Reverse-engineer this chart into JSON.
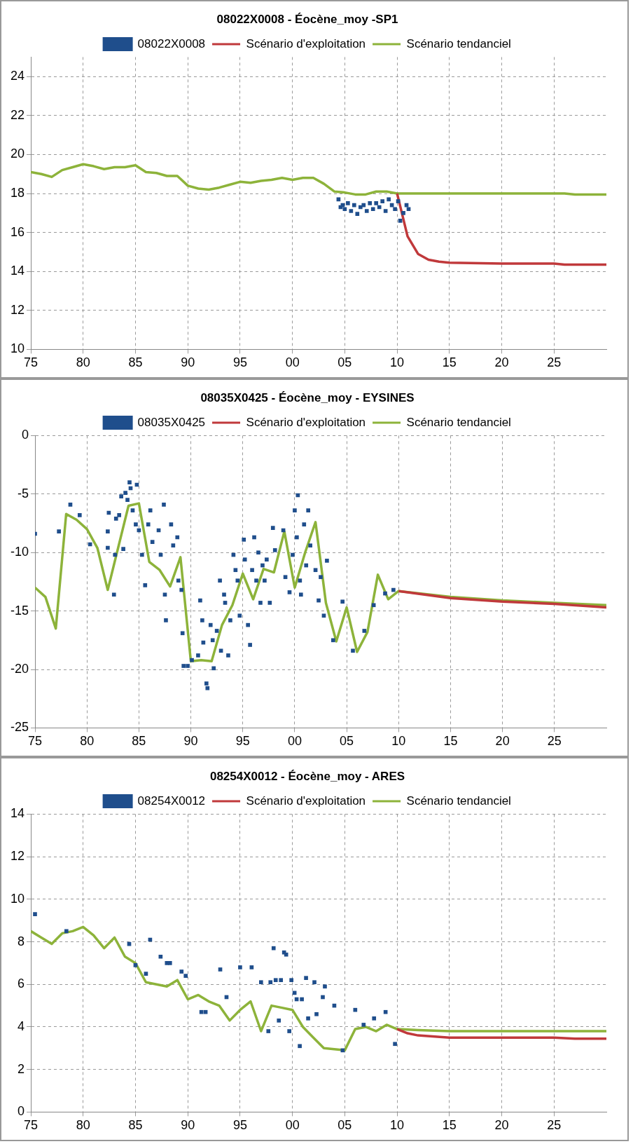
{
  "chart_data": [
    {
      "type": "line",
      "title": "08022X0008 - Éocène_moy -SP1",
      "xlim": [
        1975,
        2030
      ],
      "xticks": [
        {
          "value": 1975,
          "label": "75"
        },
        {
          "value": 1980,
          "label": "80"
        },
        {
          "value": 1985,
          "label": "85"
        },
        {
          "value": 1990,
          "label": "90"
        },
        {
          "value": 1995,
          "label": "95"
        },
        {
          "value": 2000,
          "label": "00"
        },
        {
          "value": 2005,
          "label": "05"
        },
        {
          "value": 2010,
          "label": "10"
        },
        {
          "value": 2015,
          "label": "15"
        },
        {
          "value": 2020,
          "label": "20"
        },
        {
          "value": 2025,
          "label": "25"
        }
      ],
      "ylim": [
        10,
        25
      ],
      "yticks": [
        10,
        12,
        14,
        16,
        18,
        20,
        22,
        24
      ],
      "grid": true,
      "legend": "top",
      "series": [
        {
          "name": "08022X0008",
          "type": "scatter",
          "marker": "square",
          "color": "#1f4e8c",
          "x": [
            2004.4,
            2004.6,
            2004.8,
            2005.0,
            2005.3,
            2005.6,
            2005.9,
            2006.2,
            2006.5,
            2006.8,
            2007.1,
            2007.4,
            2007.7,
            2008.0,
            2008.3,
            2008.6,
            2008.9,
            2009.2,
            2009.5,
            2009.8,
            2010.1,
            2010.3,
            2010.6,
            2010.9,
            2011.1
          ],
          "values": [
            17.7,
            17.3,
            17.4,
            17.2,
            17.5,
            17.1,
            17.4,
            16.95,
            17.3,
            17.4,
            17.1,
            17.5,
            17.2,
            17.5,
            17.3,
            17.6,
            17.1,
            17.7,
            17.4,
            17.2,
            17.6,
            16.6,
            17.0,
            17.4,
            17.2
          ]
        },
        {
          "name": "Scénario d'exploitation",
          "type": "line",
          "color": "#c0393b",
          "x": [
            2010,
            2011,
            2012,
            2013,
            2014,
            2015,
            2020,
            2025,
            2026,
            2030
          ],
          "values": [
            18.0,
            15.8,
            14.9,
            14.6,
            14.5,
            14.45,
            14.4,
            14.4,
            14.35,
            14.35
          ]
        },
        {
          "name": "Scénario tendanciel",
          "type": "line",
          "color": "#8db33a",
          "x": [
            1975,
            1976,
            1977,
            1978,
            1979,
            1980,
            1981,
            1982,
            1983,
            1984,
            1985,
            1986,
            1987,
            1988,
            1989,
            1990,
            1991,
            1992,
            1993,
            1994,
            1995,
            1996,
            1997,
            1998,
            1999,
            2000,
            2001,
            2002,
            2003,
            2004,
            2005,
            2006,
            2007,
            2008,
            2009,
            2010,
            2015,
            2026,
            2027,
            2030
          ],
          "values": [
            19.1,
            19.0,
            18.85,
            19.2,
            19.35,
            19.5,
            19.4,
            19.25,
            19.35,
            19.35,
            19.45,
            19.1,
            19.05,
            18.9,
            18.9,
            18.4,
            18.25,
            18.2,
            18.3,
            18.45,
            18.6,
            18.55,
            18.65,
            18.7,
            18.8,
            18.7,
            18.8,
            18.8,
            18.5,
            18.1,
            18.05,
            17.95,
            17.95,
            18.1,
            18.1,
            18.0,
            18.0,
            18.0,
            17.95,
            17.95
          ]
        }
      ]
    },
    {
      "type": "line",
      "title": "08035X0425 - Éocène_moy - EYSINES",
      "xlim": [
        1975,
        2030
      ],
      "xticks": [
        {
          "value": 1975,
          "label": "75"
        },
        {
          "value": 1980,
          "label": "80"
        },
        {
          "value": 1985,
          "label": "85"
        },
        {
          "value": 1990,
          "label": "90"
        },
        {
          "value": 1995,
          "label": "95"
        },
        {
          "value": 2000,
          "label": "00"
        },
        {
          "value": 2005,
          "label": "05"
        },
        {
          "value": 2010,
          "label": "10"
        },
        {
          "value": 2015,
          "label": "15"
        },
        {
          "value": 2020,
          "label": "20"
        },
        {
          "value": 2025,
          "label": "25"
        }
      ],
      "ylim": [
        -25,
        0
      ],
      "yticks": [
        -25,
        -20,
        -15,
        -10,
        -5,
        0
      ],
      "grid": true,
      "legend": "top",
      "series": [
        {
          "name": "08035X0425",
          "type": "scatter",
          "marker": "square",
          "color": "#1f4e8c",
          "x": [
            1975.0,
            1977.3,
            1978.4,
            1979.3,
            1980.3,
            1982.0,
            1982.0,
            1982.6,
            1982.1,
            1982.8,
            1982.7,
            1983.1,
            1983.3,
            1983.5,
            1983.7,
            1983.9,
            1984.1,
            1984.2,
            1984.4,
            1984.7,
            1984.8,
            1985.0,
            1985.3,
            1985.6,
            1985.9,
            1986.1,
            1986.3,
            1986.9,
            1987.1,
            1987.4,
            1987.5,
            1987.6,
            1988.1,
            1988.3,
            1988.7,
            1988.8,
            1989.1,
            1989.2,
            1989.3,
            1989.7,
            1990.1,
            1990.7,
            1990.9,
            1991.1,
            1991.2,
            1991.5,
            1991.6,
            1991.9,
            1992.1,
            1992.2,
            1992.5,
            1992.8,
            1992.9,
            1993.2,
            1993.3,
            1993.6,
            1993.8,
            1994.1,
            1994.3,
            1994.5,
            1994.7,
            1995.1,
            1995.2,
            1995.5,
            1995.7,
            1995.9,
            1996.1,
            1996.3,
            1996.5,
            1996.7,
            1996.9,
            1997.1,
            1997.3,
            1997.6,
            1997.9,
            1998.1,
            1998.9,
            1999.1,
            1999.5,
            1999.8,
            2000.0,
            2000.2,
            2000.3,
            2000.5,
            2000.6,
            2000.9,
            2001.1,
            2001.3,
            2001.5,
            2002.0,
            2002.3,
            2002.5,
            2002.8,
            2003.1,
            2003.7,
            2004.6,
            2005.6,
            2006.7,
            2007.6,
            2008.7,
            2009.5
          ],
          "values": [
            -8.4,
            -8.2,
            -5.9,
            -6.8,
            -9.3,
            -8.2,
            -9.6,
            -13.6,
            -6.6,
            -7.1,
            -10.2,
            -6.8,
            -5.2,
            -9.7,
            -4.9,
            -5.5,
            -4.0,
            -4.5,
            -6.4,
            -7.6,
            -4.2,
            -8.1,
            -10.2,
            -12.8,
            -7.6,
            -6.4,
            -9.1,
            -8.1,
            -10.2,
            -5.9,
            -13.6,
            -15.8,
            -7.6,
            -9.4,
            -8.7,
            -12.4,
            -13.2,
            -16.9,
            -19.7,
            -19.7,
            -19.2,
            -18.8,
            -14.1,
            -15.8,
            -17.7,
            -21.2,
            -21.6,
            -16.2,
            -17.5,
            -19.9,
            -16.7,
            -12.4,
            -18.4,
            -13.6,
            -14.3,
            -18.8,
            -15.8,
            -10.2,
            -11.5,
            -12.4,
            -15.4,
            -8.9,
            -10.6,
            -16.2,
            -17.9,
            -11.5,
            -8.7,
            -12.4,
            -10.0,
            -14.3,
            -11.1,
            -12.4,
            -10.6,
            -14.3,
            -7.9,
            -9.8,
            -8.1,
            -12.1,
            -13.4,
            -10.2,
            -6.4,
            -8.7,
            -5.1,
            -12.4,
            -13.6,
            -7.6,
            -11.1,
            -6.4,
            -9.4,
            -11.5,
            -14.1,
            -12.1,
            -15.4,
            -10.7,
            -17.5,
            -14.2,
            -18.4,
            -16.7,
            -14.5,
            -13.5,
            -13.2
          ]
        },
        {
          "name": "Scénario d'exploitation",
          "type": "line",
          "color": "#c0393b",
          "x": [
            2010,
            2015,
            2020,
            2025,
            2030
          ],
          "values": [
            -13.3,
            -13.9,
            -14.2,
            -14.4,
            -14.7
          ]
        },
        {
          "name": "Scénario tendanciel",
          "type": "line",
          "color": "#8db33a",
          "x": [
            1975,
            1976,
            1977,
            1978,
            1979,
            1980,
            1981,
            1982,
            1983,
            1984,
            1985,
            1986,
            1987,
            1988,
            1989,
            1990,
            1991,
            1992,
            1993,
            1994,
            1995,
            1996,
            1997,
            1998,
            1999,
            2000,
            2001,
            2002,
            2003,
            2004,
            2005,
            2006,
            2007,
            2008,
            2009,
            2010,
            2015,
            2020,
            2025,
            2030
          ],
          "values": [
            -13.0,
            -13.8,
            -16.5,
            -6.7,
            -7.2,
            -8.0,
            -9.6,
            -13.2,
            -9.6,
            -6.0,
            -5.8,
            -10.8,
            -11.5,
            -12.9,
            -10.4,
            -19.3,
            -19.2,
            -19.3,
            -16.2,
            -14.5,
            -11.8,
            -14.0,
            -11.4,
            -11.7,
            -8.2,
            -13.0,
            -10.0,
            -7.4,
            -14.3,
            -17.6,
            -14.7,
            -18.5,
            -16.8,
            -11.9,
            -14.0,
            -13.3,
            -13.8,
            -14.1,
            -14.3,
            -14.5
          ]
        }
      ]
    },
    {
      "type": "line",
      "title": "08254X0012 - Éocène_moy - ARES",
      "xlim": [
        1975,
        2030
      ],
      "xticks": [
        {
          "value": 1975,
          "label": "75"
        },
        {
          "value": 1980,
          "label": "80"
        },
        {
          "value": 1985,
          "label": "85"
        },
        {
          "value": 1990,
          "label": "90"
        },
        {
          "value": 1995,
          "label": "95"
        },
        {
          "value": 2000,
          "label": "00"
        },
        {
          "value": 2005,
          "label": "05"
        },
        {
          "value": 2010,
          "label": "10"
        },
        {
          "value": 2015,
          "label": "15"
        },
        {
          "value": 2020,
          "label": "20"
        },
        {
          "value": 2025,
          "label": "25"
        }
      ],
      "ylim": [
        0,
        14
      ],
      "yticks": [
        0,
        2,
        4,
        6,
        8,
        10,
        12,
        14
      ],
      "grid": true,
      "legend": "top",
      "series": [
        {
          "name": "08254X0012",
          "type": "scatter",
          "marker": "square",
          "color": "#1f4e8c",
          "x": [
            1975.4,
            1978.4,
            1984.4,
            1985.0,
            1986.0,
            1986.4,
            1987.4,
            1988.0,
            1988.3,
            1989.4,
            1989.8,
            1991.3,
            1991.7,
            1993.1,
            1993.7,
            1995.0,
            1996.1,
            1997.0,
            1997.7,
            1997.9,
            1998.2,
            1998.4,
            1998.7,
            1998.9,
            1999.2,
            1999.4,
            1999.7,
            1999.9,
            2000.2,
            2000.4,
            2000.7,
            2000.9,
            2001.3,
            2001.5,
            2002.1,
            2002.3,
            2002.9,
            2003.1,
            2004.0,
            2004.8,
            2006.0,
            2006.8,
            2007.8,
            2008.9,
            2009.8
          ],
          "values": [
            9.3,
            8.5,
            7.9,
            6.9,
            6.5,
            8.1,
            7.3,
            7.0,
            7.0,
            6.6,
            6.4,
            4.7,
            4.7,
            6.7,
            5.4,
            6.8,
            6.8,
            6.1,
            3.8,
            6.1,
            7.7,
            6.2,
            4.3,
            6.2,
            7.5,
            7.4,
            3.8,
            6.2,
            5.6,
            5.3,
            3.1,
            5.3,
            6.3,
            4.4,
            6.1,
            4.6,
            5.4,
            5.9,
            5.0,
            2.9,
            4.8,
            4.1,
            4.4,
            4.7,
            3.2
          ]
        },
        {
          "name": "Scénario d'exploitation",
          "type": "line",
          "color": "#c0393b",
          "x": [
            2010,
            2011,
            2012,
            2015,
            2025,
            2027,
            2030
          ],
          "values": [
            3.9,
            3.7,
            3.6,
            3.5,
            3.5,
            3.45,
            3.45
          ]
        },
        {
          "name": "Scénario tendanciel",
          "type": "line",
          "color": "#8db33a",
          "x": [
            1975,
            1976,
            1977,
            1978,
            1979,
            1980,
            1981,
            1982,
            1983,
            1984,
            1985,
            1986,
            1987,
            1988,
            1989,
            1990,
            1991,
            1992,
            1993,
            1994,
            1995,
            1996,
            1997,
            1998,
            1999,
            2000,
            2001,
            2002,
            2003,
            2004,
            2005,
            2006,
            2007,
            2008,
            2009,
            2010,
            2012,
            2015,
            2030
          ],
          "values": [
            8.5,
            8.2,
            7.9,
            8.4,
            8.5,
            8.7,
            8.3,
            7.7,
            8.2,
            7.3,
            7.0,
            6.1,
            6.0,
            5.9,
            6.2,
            5.3,
            5.5,
            5.2,
            5.0,
            4.3,
            4.8,
            5.2,
            3.8,
            5.0,
            4.9,
            4.8,
            4.0,
            3.5,
            3.0,
            2.95,
            2.9,
            3.9,
            4.0,
            3.8,
            4.1,
            3.9,
            3.85,
            3.8,
            3.8
          ]
        }
      ]
    }
  ]
}
